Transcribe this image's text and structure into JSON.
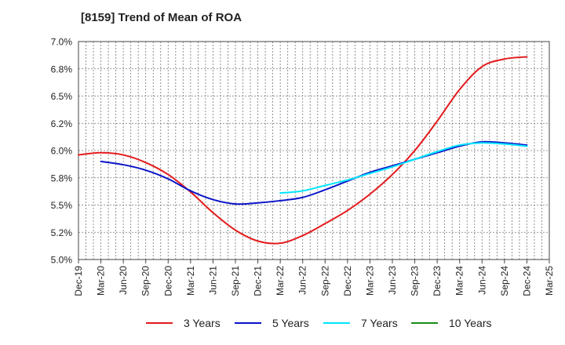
{
  "chart_data": {
    "type": "line",
    "title": "[8159]  Trend of Mean of ROA",
    "xlabel": "",
    "ylabel": "",
    "ylim": [
      5.0,
      7.0
    ],
    "yticks": [
      "7.0%",
      "6.8%",
      "6.5%",
      "6.2%",
      "6.0%",
      "5.8%",
      "5.5%",
      "5.2%",
      "5.0%"
    ],
    "ytick_values": [
      7.0,
      6.75,
      6.5,
      6.25,
      6.0,
      5.75,
      5.5,
      5.25,
      5.0
    ],
    "categories": [
      "Dec-19",
      "Mar-20",
      "Jun-20",
      "Sep-20",
      "Dec-20",
      "Mar-21",
      "Jun-21",
      "Sep-21",
      "Dec-21",
      "Mar-22",
      "Jun-22",
      "Sep-22",
      "Dec-22",
      "Mar-23",
      "Jun-23",
      "Sep-23",
      "Dec-23",
      "Mar-24",
      "Jun-24",
      "Sep-24",
      "Dec-24",
      "Mar-25"
    ],
    "grid": true,
    "legend_position": "bottom",
    "series": [
      {
        "name": "3 Years",
        "color": "#e41a1c",
        "values": [
          5.96,
          5.98,
          5.96,
          5.89,
          5.78,
          5.62,
          5.43,
          5.27,
          5.17,
          5.15,
          5.22,
          5.33,
          5.45,
          5.6,
          5.78,
          6.0,
          6.27,
          6.56,
          6.77,
          6.84,
          6.86,
          null
        ]
      },
      {
        "name": "5 Years",
        "color": "#0a14c8",
        "values": [
          null,
          5.9,
          5.87,
          5.82,
          5.74,
          5.63,
          5.55,
          5.51,
          5.52,
          5.54,
          5.57,
          5.64,
          5.72,
          5.8,
          5.86,
          5.92,
          5.98,
          6.04,
          6.08,
          6.07,
          6.05,
          null
        ]
      },
      {
        "name": "7 Years",
        "color": "#00e5ff",
        "values": [
          null,
          null,
          null,
          null,
          null,
          null,
          null,
          null,
          null,
          5.61,
          5.63,
          5.68,
          5.73,
          5.79,
          5.85,
          5.92,
          5.99,
          6.05,
          6.07,
          6.06,
          6.04,
          null
        ]
      },
      {
        "name": "10 Years",
        "color": "#1a8c1a",
        "values": [
          null,
          null,
          null,
          null,
          null,
          null,
          null,
          null,
          null,
          null,
          null,
          null,
          null,
          null,
          null,
          null,
          null,
          null,
          null,
          null,
          null,
          null
        ]
      }
    ]
  }
}
